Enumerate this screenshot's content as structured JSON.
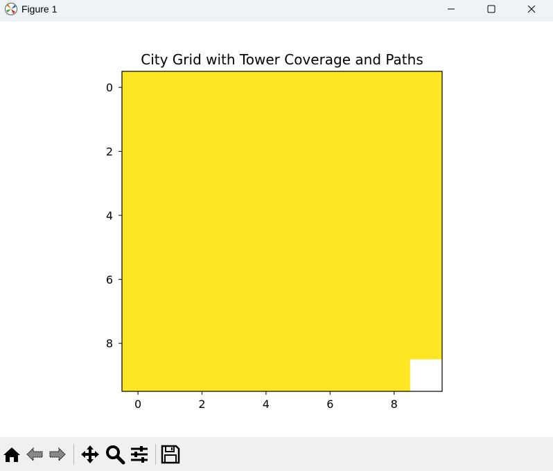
{
  "window": {
    "title": "Figure 1",
    "controls": {
      "minimize": "minimize",
      "maximize": "maximize",
      "close": "close"
    }
  },
  "chart_data": {
    "type": "heatmap",
    "title": "City Grid with Tower Coverage and Paths",
    "xlabel": "",
    "ylabel": "",
    "rows": 10,
    "cols": 10,
    "xlim": [
      -0.5,
      9.5
    ],
    "ylim": [
      9.5,
      -0.5
    ],
    "xticks": [
      0,
      2,
      4,
      6,
      8
    ],
    "yticks": [
      0,
      2,
      4,
      6,
      8
    ],
    "fill_color": "#fde724",
    "uncovered_cells": [
      [
        9,
        9
      ]
    ],
    "uncovered_color": "#ffffff"
  },
  "toolbar": {
    "items": [
      "home-icon",
      "back-icon",
      "forward-icon",
      "pan-icon",
      "zoom-icon",
      "configure-subplots-icon",
      "save-icon"
    ]
  }
}
